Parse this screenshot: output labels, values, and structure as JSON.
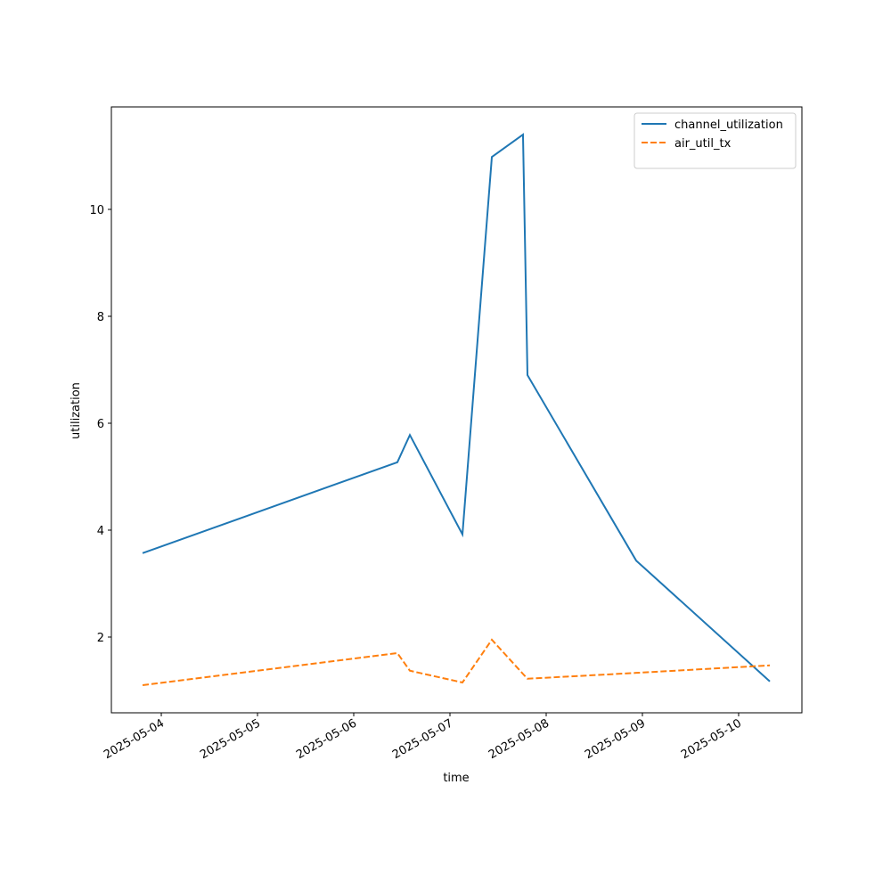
{
  "chart_data": {
    "type": "line",
    "x_label": "time",
    "y_label": "utilization",
    "x": [
      "2025-05-03T19:20",
      "2025-05-06T10:53",
      "2025-05-06T14:00",
      "2025-05-07T03:07",
      "2025-05-07T10:27",
      "2025-05-07T18:13",
      "2025-05-07T19:20",
      "2025-05-08T22:27",
      "2025-05-10T07:47"
    ],
    "series": [
      {
        "name": "channel_utilization",
        "color": "#1f77b4",
        "dash": false,
        "values": [
          3.57,
          5.27,
          5.78,
          3.92,
          10.98,
          11.4,
          6.9,
          3.43,
          1.17
        ]
      },
      {
        "name": "air_util_tx",
        "color": "#ff7f0e",
        "dash": true,
        "values": [
          1.1,
          1.7,
          1.37,
          1.15,
          1.95,
          1.31,
          1.22,
          1.33,
          1.47
        ]
      }
    ],
    "xlim": [
      "2025-05-03T11:33",
      "2025-05-10T15:47"
    ],
    "xticks": [
      "2025-05-04",
      "2025-05-05",
      "2025-05-06",
      "2025-05-07",
      "2025-05-08",
      "2025-05-09",
      "2025-05-10"
    ],
    "ylim": [
      0.583,
      11.917
    ],
    "yticks": [
      2,
      4,
      6,
      8,
      10
    ],
    "grid": false,
    "legend": "upper right"
  }
}
